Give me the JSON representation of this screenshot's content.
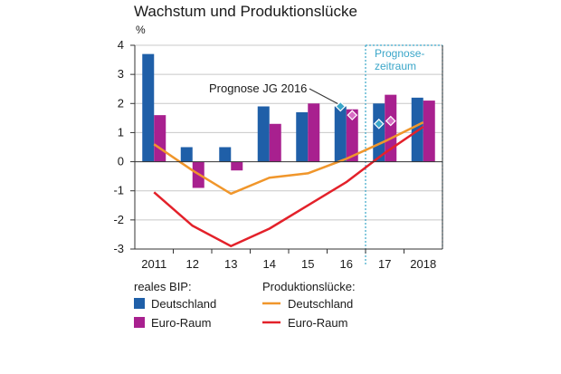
{
  "title": "Wachstum und Produktionslücke",
  "chart_data": {
    "type": "bar",
    "title": "Wachstum und Produktionslücke",
    "unit": "%",
    "categories": [
      "2011",
      "12",
      "13",
      "14",
      "15",
      "16",
      "17",
      "2018"
    ],
    "ylim": [
      -3,
      4
    ],
    "yticks": [
      4,
      3,
      2,
      1,
      0,
      -1,
      -2,
      -3
    ],
    "grid": true,
    "series": [
      {
        "name": "Deutschland",
        "group": "reales BIP:",
        "type": "bar",
        "color": "#1f5fa8",
        "values": [
          3.7,
          0.5,
          0.5,
          1.9,
          1.7,
          1.9,
          2.0,
          2.2
        ]
      },
      {
        "name": "Euro-Raum",
        "group": "reales BIP:",
        "type": "bar",
        "color": "#a8208f",
        "values": [
          1.6,
          -0.9,
          -0.3,
          1.3,
          2.0,
          1.8,
          2.3,
          2.1
        ]
      },
      {
        "name": "Deutschland",
        "group": "Produktionslücke:",
        "type": "line",
        "color": "#f0962b",
        "values": [
          0.6,
          -0.3,
          -1.1,
          -0.55,
          -0.4,
          0.1,
          0.7,
          1.35
        ]
      },
      {
        "name": "Euro-Raum",
        "group": "Produktionslücke:",
        "type": "line",
        "color": "#e3212a",
        "values": [
          -1.05,
          -2.2,
          -2.9,
          -2.3,
          -1.5,
          -0.7,
          0.3,
          1.2
        ]
      }
    ],
    "prognose_jg_2016": {
      "label": "Prognose JG 2016",
      "points": [
        {
          "category": "16",
          "series": "Deutschland",
          "value": 1.9,
          "color": "#3aa6c9"
        },
        {
          "category": "16",
          "series": "Euro-Raum",
          "value": 1.6,
          "color": "#d76cc4"
        },
        {
          "category": "17",
          "series": "Deutschland",
          "value": 1.3,
          "color": "#3aa6c9"
        },
        {
          "category": "17",
          "series": "Euro-Raum",
          "value": 1.4,
          "color": "#d76cc4"
        }
      ]
    },
    "forecast_period": {
      "label_line1": "Prognose-",
      "label_line2": "zeitraum",
      "from_category": "17",
      "color": "#3aa6c9"
    },
    "legend": {
      "placement": "bottom",
      "groups": [
        {
          "title": "reales BIP:",
          "items": [
            {
              "label": "Deutschland",
              "color": "#1f5fa8",
              "kind": "box"
            },
            {
              "label": "Euro-Raum",
              "color": "#a8208f",
              "kind": "box"
            }
          ]
        },
        {
          "title": "Produktionslücke:",
          "items": [
            {
              "label": "Deutschland",
              "color": "#f0962b",
              "kind": "line"
            },
            {
              "label": "Euro-Raum",
              "color": "#e3212a",
              "kind": "line"
            }
          ]
        }
      ]
    }
  }
}
